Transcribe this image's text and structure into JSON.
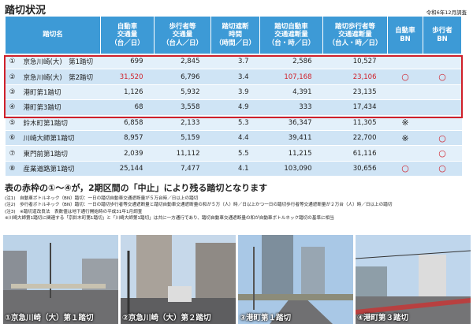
{
  "header": {
    "title": "踏切状況",
    "survey_date": "令和6年12月調査"
  },
  "table": {
    "columns": [
      "踏切名",
      "自動車\n交通量\n（台／日）",
      "歩行者等\n交通量\n（台人／日）",
      "踏切遮断\n時間\n（時間／日）",
      "踏切自動車\n交通遮断量\n（台・時／日）",
      "踏切歩行者等\n交通遮断量\n（台人・時／日）",
      "自動車\nBN",
      "歩行者\nBN"
    ],
    "rows": [
      {
        "no": "①",
        "name": "京急川崎(大)　第1踏切",
        "values": [
          "699",
          "2,845",
          "3.7",
          "2,586",
          "10,527"
        ]
      },
      {
        "no": "②",
        "name": "京急川崎(大)　第2踏切",
        "values": [
          "31,520",
          "6,796",
          "3.4",
          "107,168",
          "23,106"
        ],
        "red_values": [
          0,
          3,
          4
        ],
        "car_bn": "○",
        "ped_bn": "○"
      },
      {
        "no": "③",
        "name": "港町第1踏切",
        "values": [
          "1,126",
          "5,932",
          "3.9",
          "4,391",
          "23,135"
        ]
      },
      {
        "no": "④",
        "name": "港町第3踏切",
        "values": [
          "68",
          "3,558",
          "4.9",
          "333",
          "17,434"
        ]
      },
      {
        "no": "⑤",
        "name": "鈴木町第1踏切",
        "values": [
          "6,858",
          "2,133",
          "5.3",
          "36,347",
          "11,305"
        ],
        "car_bn": "※"
      },
      {
        "no": "⑥",
        "name": "川崎大師第1踏切",
        "values": [
          "8,957",
          "5,159",
          "4.4",
          "39,411",
          "22,700"
        ],
        "car_bn": "※",
        "ped_bn": "○"
      },
      {
        "no": "⑦",
        "name": "東門前第1踏切",
        "values": [
          "2,039",
          "11,112",
          "5.5",
          "11,215",
          "61,116"
        ],
        "ped_bn": "○"
      },
      {
        "no": "⑧",
        "name": "産業道路第1踏切",
        "values": [
          "25,144",
          "7,477",
          "4.1",
          "103,090",
          "30,656"
        ],
        "car_bn": "○",
        "ped_bn": "○"
      }
    ]
  },
  "heading": "表の赤枠の①～④が，2期区間の「中止」により残る踏切となります",
  "notes": [
    "(注1)　自動車ボトルネック（BN）踏切：一日の踏切自動車交通遮断量が５万台時／日以上の踏切",
    "(注2)　歩行者ボトルネック（BN）踏切：一日の踏切歩行者等交通遮断量と踏切自動車交通遮断量の和が５万（人）時／日以上かつ一日の踏切歩行者等交通遮断量が２万台（人）時／日以上の踏切",
    "(注3)　※踏切道改良法　表数値は地下通行開始時の平成31年1月調査",
    "※川崎大師第1踏切に関連する「京鈴木町第1踏切」と「川崎大師第1踏切」は共に一方通行であり、踏切自動車交通遮断量の和が自動車ボトルネック踏切の基準に相当"
  ],
  "photos": [
    "①京急川崎（大）第１踏切",
    "②京急川崎（大）第２踏切",
    "③港町第１踏切",
    "④港町第３踏切"
  ]
}
